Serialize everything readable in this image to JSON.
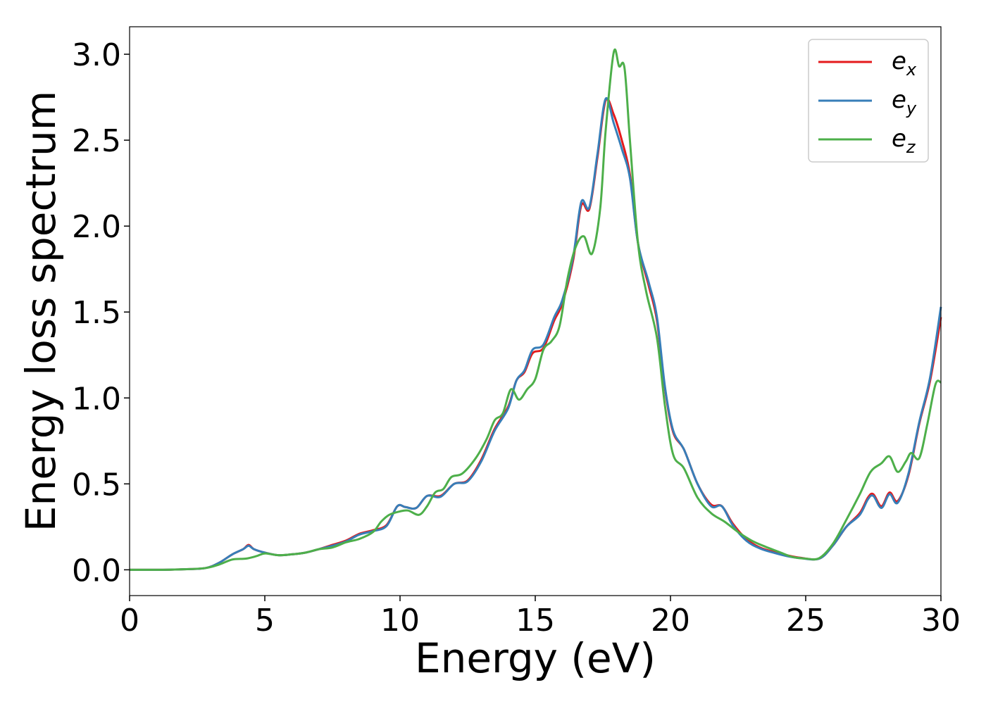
{
  "chart_data": {
    "type": "line",
    "xlabel": "Energy (eV)",
    "ylabel": "Energy loss spectrum",
    "xlim": [
      0,
      30
    ],
    "ylim": [
      -0.15,
      3.16
    ],
    "xticks": [
      0,
      5,
      10,
      15,
      20,
      25,
      30
    ],
    "yticks": [
      0.0,
      0.5,
      1.0,
      1.5,
      2.0,
      2.5,
      3.0
    ],
    "xtick_labels": [
      "0",
      "5",
      "10",
      "15",
      "20",
      "25",
      "30"
    ],
    "ytick_labels": [
      "0.0",
      "0.5",
      "1.0",
      "1.5",
      "2.0",
      "2.5",
      "3.0"
    ],
    "grid": false,
    "legend_position": "top-right",
    "series": [
      {
        "name": "e_x",
        "label_base": "e",
        "label_sub": "x",
        "color": "#e41a1c",
        "points": [
          [
            0,
            0
          ],
          [
            1,
            0
          ],
          [
            2,
            0.003
          ],
          [
            2.8,
            0.01
          ],
          [
            3.3,
            0.04
          ],
          [
            3.8,
            0.09
          ],
          [
            4.2,
            0.12
          ],
          [
            4.4,
            0.145
          ],
          [
            4.6,
            0.12
          ],
          [
            5,
            0.1
          ],
          [
            5.5,
            0.085
          ],
          [
            6,
            0.09
          ],
          [
            6.5,
            0.1
          ],
          [
            7,
            0.12
          ],
          [
            7.5,
            0.145
          ],
          [
            8,
            0.17
          ],
          [
            8.5,
            0.21
          ],
          [
            9,
            0.23
          ],
          [
            9.5,
            0.26
          ],
          [
            9.9,
            0.37
          ],
          [
            10.2,
            0.365
          ],
          [
            10.6,
            0.36
          ],
          [
            11,
            0.43
          ],
          [
            11.5,
            0.43
          ],
          [
            12,
            0.5
          ],
          [
            12.5,
            0.52
          ],
          [
            13,
            0.64
          ],
          [
            13.5,
            0.82
          ],
          [
            14,
            0.95
          ],
          [
            14.3,
            1.1
          ],
          [
            14.6,
            1.15
          ],
          [
            14.9,
            1.26
          ],
          [
            15.3,
            1.29
          ],
          [
            15.7,
            1.45
          ],
          [
            16,
            1.55
          ],
          [
            16.4,
            1.8
          ],
          [
            16.7,
            2.12
          ],
          [
            17,
            2.1
          ],
          [
            17.3,
            2.4
          ],
          [
            17.6,
            2.73
          ],
          [
            17.9,
            2.65
          ],
          [
            18.2,
            2.5
          ],
          [
            18.5,
            2.3
          ],
          [
            18.8,
            1.9
          ],
          [
            19.2,
            1.65
          ],
          [
            19.5,
            1.45
          ],
          [
            19.8,
            1.05
          ],
          [
            20.1,
            0.8
          ],
          [
            20.5,
            0.7
          ],
          [
            21,
            0.5
          ],
          [
            21.5,
            0.38
          ],
          [
            21.9,
            0.37
          ],
          [
            22.3,
            0.27
          ],
          [
            22.8,
            0.18
          ],
          [
            23.3,
            0.13
          ],
          [
            23.8,
            0.105
          ],
          [
            24.3,
            0.085
          ],
          [
            24.8,
            0.07
          ],
          [
            25.5,
            0.065
          ],
          [
            26,
            0.14
          ],
          [
            26.5,
            0.25
          ],
          [
            27,
            0.33
          ],
          [
            27.3,
            0.42
          ],
          [
            27.5,
            0.44
          ],
          [
            27.8,
            0.37
          ],
          [
            28.1,
            0.45
          ],
          [
            28.4,
            0.4
          ],
          [
            28.8,
            0.55
          ],
          [
            29.2,
            0.85
          ],
          [
            29.6,
            1.1
          ],
          [
            30,
            1.47
          ]
        ]
      },
      {
        "name": "e_y",
        "label_base": "e",
        "label_sub": "y",
        "color": "#377eb8",
        "points": [
          [
            0,
            0
          ],
          [
            1,
            0
          ],
          [
            2,
            0.003
          ],
          [
            2.8,
            0.01
          ],
          [
            3.3,
            0.04
          ],
          [
            3.8,
            0.09
          ],
          [
            4.2,
            0.12
          ],
          [
            4.4,
            0.14
          ],
          [
            4.6,
            0.12
          ],
          [
            5,
            0.1
          ],
          [
            5.5,
            0.085
          ],
          [
            6,
            0.09
          ],
          [
            6.5,
            0.1
          ],
          [
            7,
            0.12
          ],
          [
            7.5,
            0.14
          ],
          [
            8,
            0.165
          ],
          [
            8.5,
            0.205
          ],
          [
            9,
            0.225
          ],
          [
            9.5,
            0.255
          ],
          [
            9.9,
            0.37
          ],
          [
            10.2,
            0.365
          ],
          [
            10.6,
            0.36
          ],
          [
            11,
            0.43
          ],
          [
            11.5,
            0.425
          ],
          [
            12,
            0.5
          ],
          [
            12.5,
            0.515
          ],
          [
            13,
            0.63
          ],
          [
            13.5,
            0.81
          ],
          [
            14,
            0.94
          ],
          [
            14.3,
            1.1
          ],
          [
            14.6,
            1.16
          ],
          [
            14.9,
            1.28
          ],
          [
            15.3,
            1.31
          ],
          [
            15.7,
            1.47
          ],
          [
            16,
            1.57
          ],
          [
            16.4,
            1.82
          ],
          [
            16.7,
            2.14
          ],
          [
            17,
            2.11
          ],
          [
            17.3,
            2.42
          ],
          [
            17.6,
            2.74
          ],
          [
            17.9,
            2.6
          ],
          [
            18.2,
            2.45
          ],
          [
            18.5,
            2.28
          ],
          [
            18.8,
            1.9
          ],
          [
            19.2,
            1.67
          ],
          [
            19.5,
            1.47
          ],
          [
            19.8,
            1.06
          ],
          [
            20.1,
            0.81
          ],
          [
            20.5,
            0.7
          ],
          [
            21,
            0.5
          ],
          [
            21.5,
            0.37
          ],
          [
            21.9,
            0.37
          ],
          [
            22.3,
            0.26
          ],
          [
            22.8,
            0.17
          ],
          [
            23.3,
            0.125
          ],
          [
            23.8,
            0.1
          ],
          [
            24.3,
            0.08
          ],
          [
            24.8,
            0.068
          ],
          [
            25.5,
            0.065
          ],
          [
            26,
            0.14
          ],
          [
            26.5,
            0.25
          ],
          [
            27,
            0.32
          ],
          [
            27.3,
            0.41
          ],
          [
            27.5,
            0.43
          ],
          [
            27.8,
            0.36
          ],
          [
            28.1,
            0.44
          ],
          [
            28.4,
            0.39
          ],
          [
            28.8,
            0.56
          ],
          [
            29.2,
            0.86
          ],
          [
            29.6,
            1.12
          ],
          [
            30,
            1.53
          ]
        ]
      },
      {
        "name": "e_z",
        "label_base": "e",
        "label_sub": "z",
        "color": "#4daf4a",
        "points": [
          [
            0,
            0
          ],
          [
            1,
            0
          ],
          [
            2,
            0.003
          ],
          [
            2.8,
            0.01
          ],
          [
            3.3,
            0.03
          ],
          [
            3.8,
            0.06
          ],
          [
            4.3,
            0.065
          ],
          [
            4.7,
            0.08
          ],
          [
            5,
            0.095
          ],
          [
            5.5,
            0.085
          ],
          [
            6,
            0.09
          ],
          [
            6.5,
            0.1
          ],
          [
            7,
            0.12
          ],
          [
            7.5,
            0.13
          ],
          [
            8,
            0.16
          ],
          [
            8.5,
            0.18
          ],
          [
            9,
            0.22
          ],
          [
            9.3,
            0.28
          ],
          [
            9.6,
            0.32
          ],
          [
            10,
            0.34
          ],
          [
            10.3,
            0.345
          ],
          [
            10.7,
            0.32
          ],
          [
            11,
            0.37
          ],
          [
            11.3,
            0.45
          ],
          [
            11.6,
            0.47
          ],
          [
            11.9,
            0.54
          ],
          [
            12.3,
            0.56
          ],
          [
            12.8,
            0.65
          ],
          [
            13.2,
            0.76
          ],
          [
            13.5,
            0.87
          ],
          [
            13.8,
            0.91
          ],
          [
            14.1,
            1.05
          ],
          [
            14.4,
            0.99
          ],
          [
            14.7,
            1.05
          ],
          [
            15,
            1.11
          ],
          [
            15.3,
            1.28
          ],
          [
            15.6,
            1.33
          ],
          [
            15.9,
            1.42
          ],
          [
            16.2,
            1.7
          ],
          [
            16.5,
            1.88
          ],
          [
            16.8,
            1.94
          ],
          [
            17.1,
            1.84
          ],
          [
            17.4,
            2.1
          ],
          [
            17.6,
            2.55
          ],
          [
            17.9,
            3.01
          ],
          [
            18.1,
            2.93
          ],
          [
            18.3,
            2.92
          ],
          [
            18.5,
            2.5
          ],
          [
            18.8,
            1.9
          ],
          [
            19.1,
            1.62
          ],
          [
            19.5,
            1.35
          ],
          [
            19.8,
            0.95
          ],
          [
            20.1,
            0.67
          ],
          [
            20.5,
            0.59
          ],
          [
            21,
            0.42
          ],
          [
            21.5,
            0.33
          ],
          [
            22,
            0.28
          ],
          [
            22.5,
            0.22
          ],
          [
            23,
            0.17
          ],
          [
            23.5,
            0.135
          ],
          [
            24,
            0.105
          ],
          [
            24.5,
            0.075
          ],
          [
            25,
            0.065
          ],
          [
            25.5,
            0.068
          ],
          [
            26,
            0.15
          ],
          [
            26.5,
            0.29
          ],
          [
            27,
            0.44
          ],
          [
            27.4,
            0.57
          ],
          [
            27.8,
            0.62
          ],
          [
            28.1,
            0.66
          ],
          [
            28.4,
            0.57
          ],
          [
            28.7,
            0.63
          ],
          [
            28.9,
            0.68
          ],
          [
            29.2,
            0.65
          ],
          [
            29.5,
            0.85
          ],
          [
            29.8,
            1.08
          ],
          [
            30,
            1.09
          ]
        ]
      }
    ]
  }
}
